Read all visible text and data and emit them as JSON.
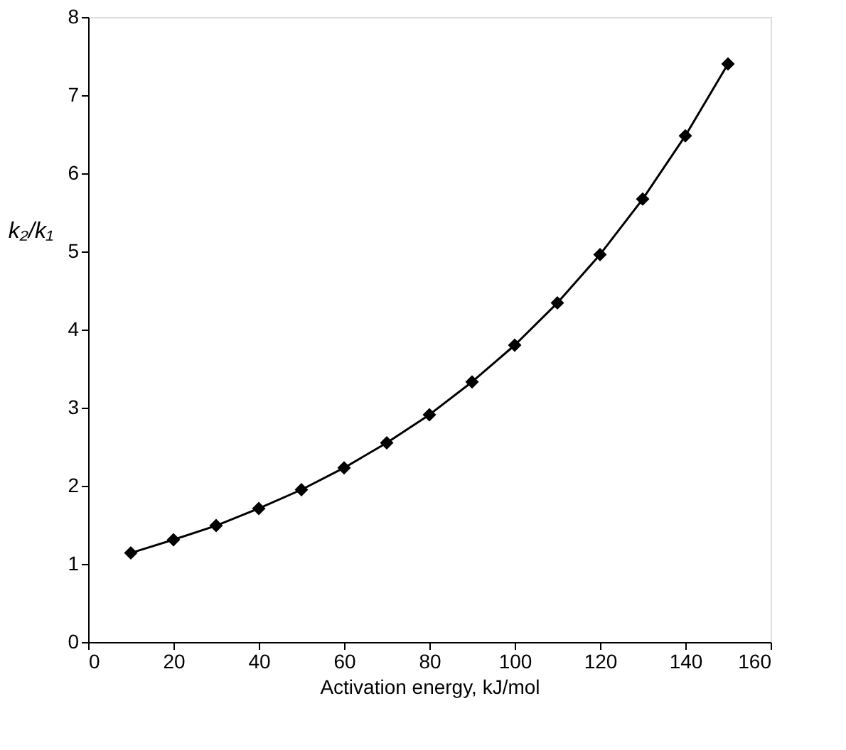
{
  "chart_data": {
    "type": "line",
    "xlabel": "Activation energy, kJ/mol",
    "ylabel": "k₂/k₁",
    "x": [
      10,
      20,
      30,
      40,
      50,
      60,
      70,
      80,
      90,
      100,
      110,
      120,
      130,
      140,
      150
    ],
    "series": [
      {
        "color": "#000000",
        "values": [
          1.14,
          1.31,
          1.49,
          1.71,
          1.95,
          2.23,
          2.55,
          2.91,
          3.33,
          3.8,
          4.34,
          4.96,
          5.67,
          6.48,
          7.4
        ]
      }
    ],
    "xlim": [
      0,
      160
    ],
    "xticks": [
      0,
      20,
      40,
      60,
      80,
      100,
      120,
      140,
      160
    ],
    "ylim": [
      0,
      8
    ],
    "yticks": [
      0,
      1,
      2,
      3,
      4,
      5,
      6,
      7,
      8
    ],
    "grid": false,
    "marker": "diamond",
    "line_style": "solid"
  }
}
